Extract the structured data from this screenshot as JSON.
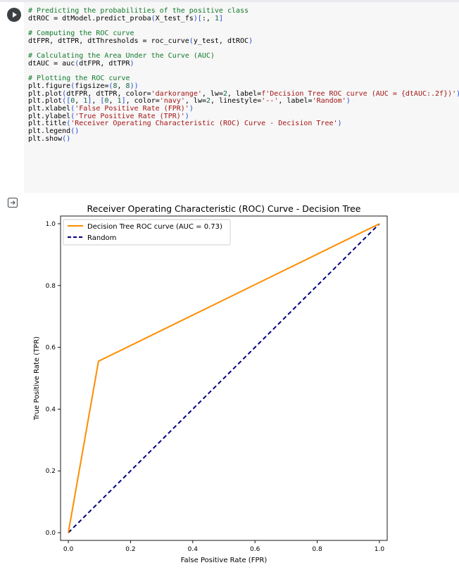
{
  "code_cell": {
    "lines": [
      "# Predicting the probabilities of the positive class",
      "dtROC = dtModel.predict_proba(X_test_fs)[:, 1]",
      "",
      "# Computing the ROC curve",
      "dtFPR, dtTPR, dtThresholds = roc_curve(y_test, dtROC)",
      "",
      "# Calculating the Area Under the Curve (AUC)",
      "dtAUC = auc(dtFPR, dtTPR)",
      "",
      "# Plotting the ROC curve",
      "plt.figure(figsize=(8, 8))",
      "plt.plot(dtFPR, dtTPR, color='darkorange', lw=2, label=f'Decision Tree ROC curve (AUC = {dtAUC:.2f})')",
      "plt.plot([0, 1], [0, 1], color='navy', lw=2, linestyle='--', label='Random')",
      "plt.xlabel('False Positive Rate (FPR)')",
      "plt.ylabel('True Positive Rate (TPR)')",
      "plt.title('Receiver Operating Characteristic (ROC) Curve - Decision Tree')",
      "plt.legend()",
      "plt.show()"
    ]
  },
  "icons": {
    "run": "play-icon",
    "output": "output-toggle-icon"
  },
  "chart_data": {
    "type": "line",
    "title": "Receiver Operating Characteristic (ROC) Curve - Decision Tree",
    "xlabel": "False Positive Rate (FPR)",
    "ylabel": "True Positive Rate (TPR)",
    "xlim": [
      -0.025,
      1.025
    ],
    "ylim": [
      -0.025,
      1.025
    ],
    "xticks": [
      "0.0",
      "0.2",
      "0.4",
      "0.6",
      "0.8",
      "1.0"
    ],
    "yticks": [
      "0.0",
      "0.2",
      "0.4",
      "0.6",
      "0.8",
      "1.0"
    ],
    "grid": false,
    "legend_position": "top-left",
    "series": [
      {
        "name": "Decision Tree ROC curve (AUC = 0.73)",
        "color": "#ff8c00",
        "style": "solid",
        "x": [
          0.0,
          0.097,
          1.0
        ],
        "y": [
          0.0,
          0.555,
          1.0
        ]
      },
      {
        "name": "Random",
        "color": "#000080",
        "style": "dashed",
        "x": [
          0.0,
          1.0
        ],
        "y": [
          0.0,
          1.0
        ]
      }
    ]
  }
}
